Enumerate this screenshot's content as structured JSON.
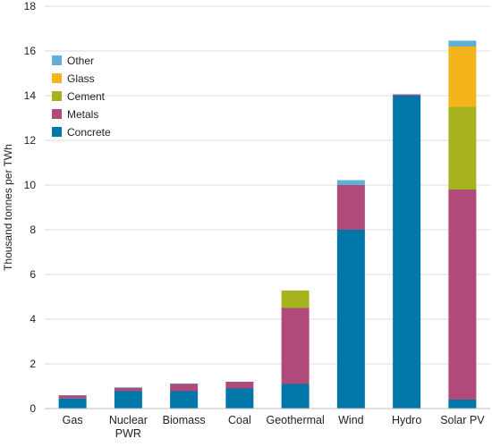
{
  "chart_data": {
    "type": "bar",
    "stacked": true,
    "title": "",
    "xlabel": "",
    "ylabel": "Thousand tonnes per TWh",
    "ylim": [
      0,
      18
    ],
    "yticks": [
      0,
      2,
      4,
      6,
      8,
      10,
      12,
      14,
      16,
      18
    ],
    "grid": true,
    "legend_position": "top-left",
    "categories": [
      [
        "Gas"
      ],
      [
        "Nuclear",
        "PWR"
      ],
      [
        "Biomass"
      ],
      [
        "Coal"
      ],
      [
        "Geothermal"
      ],
      [
        "Wind"
      ],
      [
        "Hydro"
      ],
      [
        "Solar PV"
      ]
    ],
    "series": [
      {
        "name": "Concrete",
        "color": "#0077a8",
        "values": [
          0.45,
          0.78,
          0.78,
          0.9,
          1.1,
          8.0,
          14.0,
          0.4
        ]
      },
      {
        "name": "Metals",
        "color": "#b04a7a",
        "values": [
          0.13,
          0.14,
          0.32,
          0.3,
          3.4,
          2.0,
          0.05,
          9.4
        ]
      },
      {
        "name": "Cement",
        "color": "#a7b21f",
        "values": [
          0,
          0,
          0,
          0,
          0.78,
          0,
          0,
          3.7
        ]
      },
      {
        "name": "Glass",
        "color": "#f3b41c",
        "values": [
          0,
          0,
          0,
          0,
          0,
          0,
          0,
          2.7
        ]
      },
      {
        "name": "Other",
        "color": "#5fafd6",
        "values": [
          0.02,
          0.03,
          0.02,
          0,
          0,
          0.22,
          0.02,
          0.26
        ]
      }
    ]
  }
}
